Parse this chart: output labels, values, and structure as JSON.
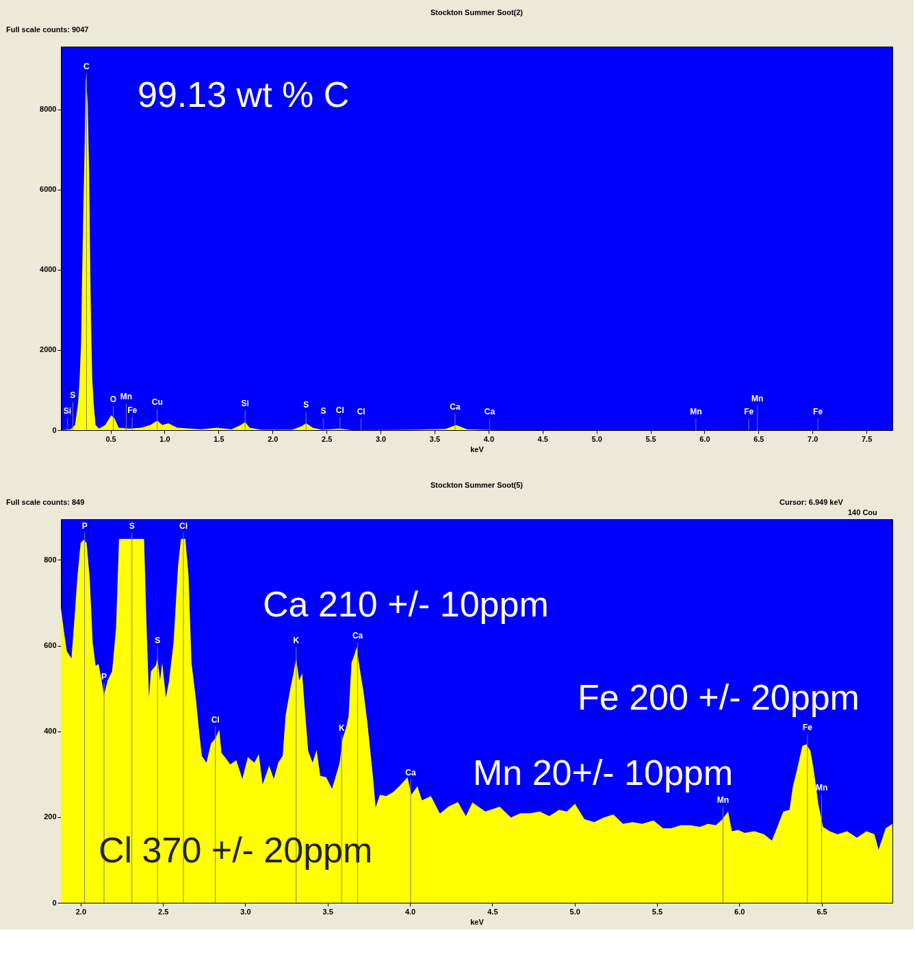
{
  "chart_data": [
    {
      "type": "area",
      "title": "Stockton Summer Soot(2)",
      "xlabel": "keV",
      "xlim": [
        0.04,
        7.74
      ],
      "ylim": [
        0,
        9570
      ],
      "xticks": [
        0.5,
        {
          "value": 1,
          "label": "1.0"
        },
        1.5,
        {
          "value": 2,
          "label": "2.0"
        },
        2.5,
        {
          "value": 3,
          "label": "3.0"
        },
        3.5,
        {
          "value": 4,
          "label": "4.0"
        },
        4.5,
        {
          "value": 5,
          "label": "5.0"
        },
        5.5,
        {
          "value": 6,
          "label": "6.0"
        },
        6.5,
        {
          "value": 7,
          "label": "7.0"
        },
        7.5
      ],
      "yticks": [
        0,
        2000,
        4000,
        6000,
        8000
      ],
      "series": [
        {
          "color": "#ffff00",
          "x": [
            0.046,
            0.129,
            0.171,
            0.199,
            0.213,
            0.227,
            0.235,
            0.246,
            0.26,
            0.271,
            0.288,
            0.302,
            0.31,
            0.319,
            0.33,
            0.344,
            0.361,
            0.394,
            0.45,
            0.506,
            0.539,
            0.575,
            0.673,
            0.784,
            0.868,
            0.932,
            0.979,
            1.035,
            1.119,
            1.342,
            1.481,
            1.621,
            1.704,
            1.746,
            1.788,
            1.899,
            2.178,
            2.262,
            2.312,
            2.373,
            2.457,
            2.624,
            2.736,
            3.3,
            3.6,
            3.7,
            3.8,
            3.95,
            4.1,
            7.74
          ],
          "values": [
            0,
            20,
            130,
            670,
            1250,
            2190,
            3600,
            5270,
            7110,
            8850,
            8170,
            6350,
            4430,
            2660,
            1320,
            640,
            130,
            40,
            130,
            370,
            280,
            60,
            40,
            60,
            130,
            240,
            130,
            170,
            60,
            20,
            60,
            20,
            130,
            200,
            60,
            10,
            10,
            90,
            170,
            60,
            10,
            40,
            0,
            10,
            30,
            130,
            20,
            10,
            0,
            0
          ]
        }
      ],
      "annotations": [
        "Full scale counts: 9047",
        "99.13 wt % C"
      ],
      "ref_lines": [
        {
          "axis": "x",
          "value": 0.1,
          "label": "Si"
        },
        {
          "axis": "x",
          "value": 0.15,
          "label": "S"
        },
        {
          "axis": "x",
          "value": 0.277,
          "label": "C"
        },
        {
          "axis": "x",
          "value": 0.525,
          "label": "O"
        },
        {
          "axis": "x",
          "value": 0.645,
          "label": "Mn"
        },
        {
          "axis": "x",
          "value": 0.7,
          "label": "Fe"
        },
        {
          "axis": "x",
          "value": 0.932,
          "label": "Cu"
        },
        {
          "axis": "x",
          "value": 1.746,
          "label": "Si"
        },
        {
          "axis": "x",
          "value": 2.31,
          "label": "S"
        },
        {
          "axis": "x",
          "value": 2.47,
          "label": "S"
        },
        {
          "axis": "x",
          "value": 2.624,
          "label": "Cl"
        },
        {
          "axis": "x",
          "value": 2.82,
          "label": "Cl"
        },
        {
          "axis": "x",
          "value": 3.69,
          "label": "Ca"
        },
        {
          "axis": "x",
          "value": 4.01,
          "label": "Ca"
        },
        {
          "axis": "x",
          "value": 5.92,
          "label": "Mn"
        },
        {
          "axis": "x",
          "value": 6.41,
          "label": "Fe"
        },
        {
          "axis": "x",
          "value": 6.49,
          "label": "Mn"
        },
        {
          "axis": "x",
          "value": 7.05,
          "label": "Fe"
        }
      ]
    },
    {
      "type": "area",
      "title": "Stockton Summer Soot(5)",
      "xlabel": "keV",
      "xlim": [
        1.88,
        6.93
      ],
      "ylim": [
        0,
        895
      ],
      "xticks": [
        {
          "value": 2,
          "label": "2.0"
        },
        2.5,
        {
          "value": 3,
          "label": "3.0"
        },
        3.5,
        {
          "value": 4,
          "label": "4.0"
        },
        4.5,
        {
          "value": 5,
          "label": "5.0"
        },
        5.5,
        {
          "value": 6,
          "label": "6.0"
        },
        6.5
      ],
      "yticks": [
        0,
        200,
        400,
        600,
        800
      ],
      "series": [
        {
          "color": "#ffff00",
          "x": [
            1.88,
            1.898,
            1.916,
            1.944,
            1.962,
            1.98,
            2.0,
            2.018,
            2.036,
            2.055,
            2.073,
            2.091,
            2.109,
            2.127,
            2.142,
            2.164,
            2.191,
            2.215,
            2.233,
            2.327,
            2.385,
            2.4,
            2.415,
            2.427,
            2.455,
            2.467,
            2.482,
            2.495,
            2.518,
            2.536,
            2.564,
            2.591,
            2.609,
            2.636,
            2.655,
            2.673,
            2.7,
            2.718,
            2.736,
            2.764,
            2.791,
            2.818,
            2.842,
            2.855,
            2.882,
            2.909,
            2.945,
            2.982,
            3.015,
            3.055,
            3.082,
            3.105,
            3.145,
            3.173,
            3.2,
            3.227,
            3.245,
            3.273,
            3.291,
            3.309,
            3.327,
            3.345,
            3.36,
            3.382,
            3.409,
            3.433,
            3.455,
            3.491,
            3.527,
            3.555,
            3.573,
            3.591,
            3.609,
            3.627,
            3.645,
            3.664,
            3.676,
            3.695,
            3.718,
            3.742,
            3.76,
            3.778,
            3.791,
            3.818,
            3.855,
            3.9,
            3.945,
            3.985,
            4.009,
            4.045,
            4.073,
            4.127,
            4.182,
            4.236,
            4.291,
            4.34,
            4.379,
            4.457,
            4.545,
            4.613,
            4.671,
            4.73,
            4.788,
            4.846,
            4.905,
            4.953,
            5.002,
            5.06,
            5.119,
            5.177,
            5.235,
            5.294,
            5.352,
            5.41,
            5.479,
            5.537,
            5.586,
            5.644,
            5.702,
            5.761,
            5.809,
            5.858,
            5.897,
            5.932,
            5.955,
            5.994,
            6.033,
            6.092,
            6.15,
            6.198,
            6.228,
            6.267,
            6.305,
            6.325,
            6.354,
            6.383,
            6.407,
            6.432,
            6.451,
            6.48,
            6.509,
            6.548,
            6.597,
            6.655,
            6.714,
            6.772,
            6.821,
            6.846,
            6.889,
            6.93
          ],
          "values": [
            688,
            634,
            587,
            570,
            661,
            759,
            840,
            847,
            840,
            756,
            607,
            553,
            557,
            519,
            485,
            519,
            540,
            641,
            849,
            849,
            849,
            648,
            479,
            540,
            553,
            570,
            519,
            560,
            479,
            516,
            607,
            783,
            849,
            849,
            763,
            560,
            475,
            404,
            343,
            327,
            371,
            384,
            404,
            350,
            337,
            323,
            333,
            289,
            340,
            327,
            347,
            276,
            320,
            289,
            327,
            343,
            438,
            499,
            533,
            570,
            519,
            536,
            458,
            354,
            327,
            357,
            296,
            293,
            266,
            303,
            327,
            384,
            404,
            435,
            560,
            580,
            597,
            546,
            492,
            418,
            350,
            283,
            222,
            252,
            249,
            259,
            276,
            293,
            252,
            272,
            239,
            249,
            208,
            225,
            235,
            202,
            234,
            213,
            224,
            199,
            209,
            209,
            213,
            202,
            217,
            213,
            231,
            195,
            188,
            199,
            206,
            184,
            188,
            184,
            192,
            174,
            174,
            181,
            181,
            177,
            184,
            181,
            195,
            213,
            167,
            170,
            163,
            167,
            160,
            145,
            174,
            213,
            217,
            270,
            316,
            366,
            370,
            355,
            313,
            231,
            177,
            167,
            160,
            167,
            152,
            167,
            160,
            124,
            174,
            184
          ]
        }
      ],
      "annotations": [
        "Full scale counts: 849",
        "Cursor:     6.949 keV",
        "140 Cou",
        "Ca 210 +/- 10ppm",
        "Fe 200 +/- 20ppm",
        "Mn 20+/- 10ppm",
        "Cl 370 +/- 20ppm"
      ],
      "ref_lines": [
        {
          "axis": "x",
          "value": 2.024,
          "label": "P"
        },
        {
          "axis": "x",
          "value": 2.142,
          "label": "P"
        },
        {
          "axis": "x",
          "value": 2.311,
          "label": "S"
        },
        {
          "axis": "x",
          "value": 2.467,
          "label": "S"
        },
        {
          "axis": "x",
          "value": 2.624,
          "label": "Cl"
        },
        {
          "axis": "x",
          "value": 2.818,
          "label": "Cl"
        },
        {
          "axis": "x",
          "value": 3.309,
          "label": "K"
        },
        {
          "axis": "x",
          "value": 3.585,
          "label": "K"
        },
        {
          "axis": "x",
          "value": 3.682,
          "label": "Ca"
        },
        {
          "axis": "x",
          "value": 4.004,
          "label": "Ca"
        },
        {
          "axis": "x",
          "value": 5.901,
          "label": "Mn"
        },
        {
          "axis": "x",
          "value": 6.414,
          "label": "Fe"
        },
        {
          "axis": "x",
          "value": 6.5,
          "label": "Mn"
        }
      ]
    }
  ]
}
